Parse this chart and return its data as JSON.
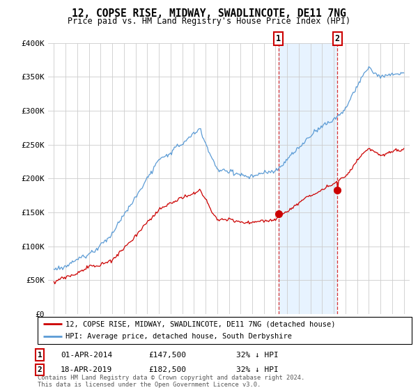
{
  "title": "12, COPSE RISE, MIDWAY, SWADLINCOTE, DE11 7NG",
  "subtitle": "Price paid vs. HM Land Registry's House Price Index (HPI)",
  "ylim": [
    0,
    400000
  ],
  "yticks": [
    0,
    50000,
    100000,
    150000,
    200000,
    250000,
    300000,
    350000,
    400000
  ],
  "ytick_labels": [
    "£0",
    "£50K",
    "£100K",
    "£150K",
    "£200K",
    "£250K",
    "£300K",
    "£350K",
    "£400K"
  ],
  "hpi_color": "#5b9bd5",
  "price_color": "#cc0000",
  "point1_year": 2014.25,
  "point1_price": 147500,
  "point1_date": "01-APR-2014",
  "point1_pct": "32% ↓ HPI",
  "point2_year": 2019.3,
  "point2_price": 182500,
  "point2_date": "18-APR-2019",
  "point2_pct": "32% ↓ HPI",
  "legend_label_red": "12, COPSE RISE, MIDWAY, SWADLINCOTE, DE11 7NG (detached house)",
  "legend_label_blue": "HPI: Average price, detached house, South Derbyshire",
  "footer": "Contains HM Land Registry data © Crown copyright and database right 2024.\nThis data is licensed under the Open Government Licence v3.0.",
  "background_color": "#ffffff",
  "grid_color": "#cccccc",
  "shade_color": "#ddeeff"
}
